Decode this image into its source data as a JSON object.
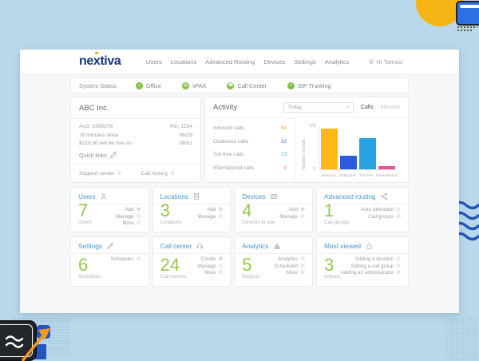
{
  "brand": {
    "logo": "nextiva"
  },
  "nav": {
    "items": [
      "Users",
      "Locations",
      "Advanced Routing",
      "Devices",
      "Settings",
      "Analytics"
    ],
    "user": "Hi Tomas!"
  },
  "status_bar": {
    "label": "System Status",
    "status_color": "#7dc243",
    "services": [
      {
        "name": "Office",
        "icon": "office-status-icon"
      },
      {
        "name": "vFAX",
        "icon": "vfax-status-icon"
      },
      {
        "name": "Call Center",
        "icon": "call-center-status-icon"
      },
      {
        "name": "SIP Trunking",
        "icon": "sip-trunking-status-icon"
      }
    ]
  },
  "account": {
    "name": "ABC Inc.",
    "rows": [
      {
        "left": "Acct: 1996378",
        "right": "Pin: 1234"
      },
      {
        "left": "76 minutes since",
        "right": "06/29"
      },
      {
        "left": "$219.50 will be due on",
        "right": "08/01"
      }
    ],
    "quick_links": "Quick links",
    "footer": [
      {
        "label": "Support center"
      },
      {
        "label": "Call history"
      }
    ]
  },
  "activity": {
    "title": "Activity",
    "period": "Today",
    "toggle": {
      "calls": "Calls",
      "minutes": "Minutes",
      "active": "Calls"
    },
    "stats": [
      {
        "label": "Inbound calls",
        "value": "94",
        "color": "#f0a43c"
      },
      {
        "label": "Outbound calls",
        "value": "32",
        "color": "#4a74dd"
      },
      {
        "label": "Toll-free calls",
        "value": "73",
        "color": "#56aee0"
      },
      {
        "label": "International calls",
        "value": "8",
        "color": "#ee7fae"
      }
    ],
    "chart_data": {
      "type": "bar",
      "categories": [
        "Inbound",
        "Outbound",
        "Toll free",
        "International"
      ],
      "values": [
        94,
        32,
        73,
        8
      ],
      "colors": [
        "#fcb915",
        "#2e5bde",
        "#28a2e0",
        "#e5549c"
      ],
      "title": "Activity",
      "xlabel": "",
      "ylabel": "Number of calls",
      "ylim": [
        0,
        100
      ],
      "yticks": [
        0,
        100
      ],
      "grid": false,
      "legend": false
    }
  },
  "cards": [
    {
      "title": "Users",
      "icon": "user-icon",
      "value": "7",
      "label": "Users",
      "links": [
        "Add",
        "Manage",
        "More"
      ]
    },
    {
      "title": "Locations",
      "icon": "building-icon",
      "value": "3",
      "label": "Locations",
      "links": [
        "Add",
        "Manage"
      ]
    },
    {
      "title": "Devices",
      "icon": "device-icon",
      "value": "4",
      "label": "Devices in use",
      "links": [
        "Add",
        "Manage"
      ]
    },
    {
      "title": "Advanced routing",
      "icon": "routing-icon",
      "value": "1",
      "label": "Call groups",
      "links": [
        "Auto attendant",
        "Call groups"
      ]
    },
    {
      "title": "Settings",
      "icon": "pencil-icon",
      "value": "6",
      "label": "Schedules",
      "links": [
        "Schedules"
      ]
    },
    {
      "title": "Call center",
      "icon": "headset-icon",
      "value": "24",
      "label": "Call centers",
      "links": [
        "Create",
        "Manage",
        "More"
      ]
    },
    {
      "title": "Analytics",
      "icon": "bar-chart-icon",
      "value": "5",
      "label": "Reports",
      "links": [
        "Analytics",
        "Scheduled",
        "More"
      ]
    },
    {
      "title": "Most viewed",
      "icon": "thumb-up-icon",
      "value": "3",
      "label": "Articles",
      "links": [
        "Adding a location",
        "Adding a call group",
        "Adding an administrator"
      ]
    }
  ]
}
